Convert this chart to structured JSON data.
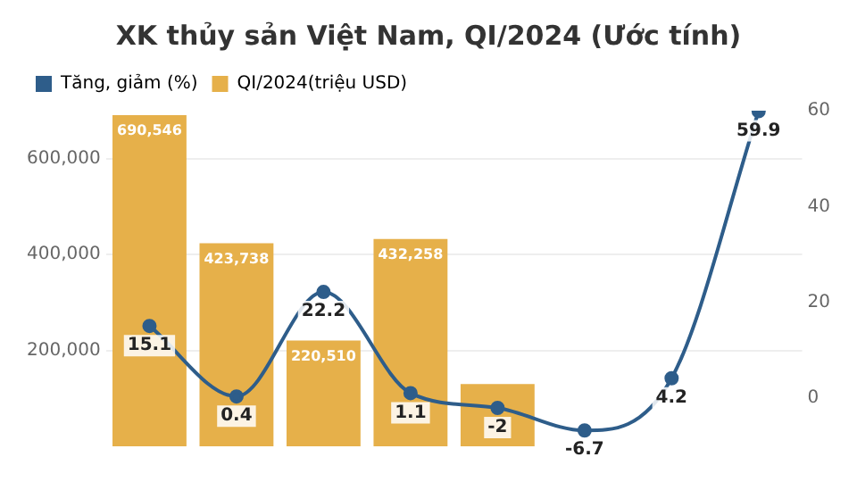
{
  "chart_data": {
    "type": "bar",
    "title": "XK thủy sản Việt Nam, QI/2024 (Ước tính)",
    "categories": [
      null,
      null,
      null,
      null,
      null,
      null,
      null,
      null
    ],
    "series": [
      {
        "name": "Tăng, giảm (%)",
        "type": "line",
        "axis": "y2",
        "color": "#2e5d8a",
        "values": [
          15.1,
          0.4,
          22.2,
          1.1,
          -2,
          -6.7,
          4.2,
          59.9
        ],
        "value_labels": [
          "15.1",
          "0.4",
          "22.2",
          "1.1",
          "-2",
          "-6.7",
          "4.2",
          "59.9"
        ]
      },
      {
        "name": "QI/2024(triệu USD)",
        "color": "#e6b04a",
        "values": [
          690546,
          423738,
          220510,
          432258,
          130000,
          null,
          null,
          null
        ],
        "value_labels": [
          "690,546",
          "423,738",
          "220,510",
          "432,258",
          null,
          null,
          null,
          null
        ]
      }
    ],
    "ylim": [
      0,
      700000
    ],
    "yticks": [
      {
        "value": 200000,
        "label": "200,000"
      },
      {
        "value": 400000,
        "label": "400,000"
      },
      {
        "value": 600000,
        "label": "600,000"
      }
    ],
    "y2lim": [
      -10,
      60
    ],
    "y2ticks": [
      0,
      20,
      40,
      60
    ],
    "grid": "y",
    "legend": "top left",
    "marker": "circle"
  }
}
